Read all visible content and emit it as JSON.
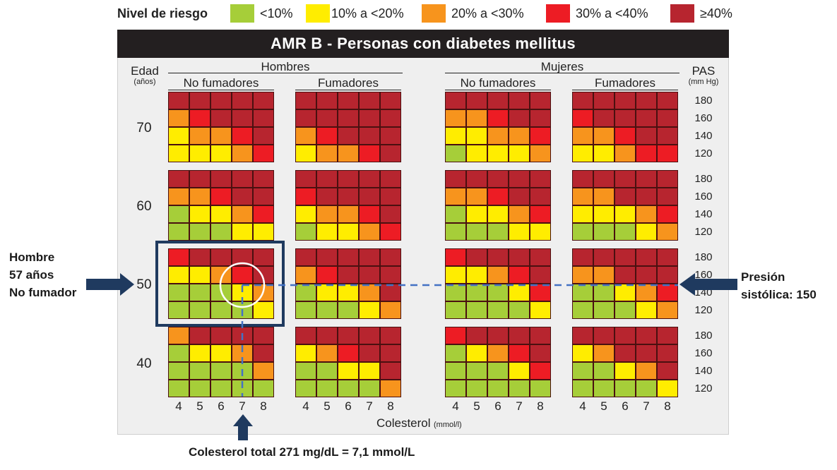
{
  "legend": {
    "title": "Nivel de riesgo",
    "items": [
      {
        "label": "<10%",
        "color": "#a6ce39"
      },
      {
        "label": "10% a <20%",
        "color": "#ffed00"
      },
      {
        "label": "20% a <30%",
        "color": "#f7941d"
      },
      {
        "label": "30% a <40%",
        "color": "#ed1c24"
      },
      {
        "label": "≥40%",
        "color": "#b7252f"
      }
    ]
  },
  "chart_data": {
    "type": "heatmap",
    "title": "AMR B - Personas con diabetes mellitus",
    "sexes": [
      "Hombres",
      "Mujeres"
    ],
    "smoking": [
      "No fumadores",
      "Fumadores"
    ],
    "age_label": "Edad",
    "age_unit": "(años)",
    "ages": [
      "70",
      "60",
      "50",
      "40"
    ],
    "sbp_label": "PAS",
    "sbp_unit": "(mm Hg)",
    "sbp_levels": [
      "180",
      "160",
      "140",
      "120"
    ],
    "cholesterol_label": "Colesterol",
    "cholesterol_unit": "(mmol/l)",
    "cholesterol_levels": [
      "4",
      "5",
      "6",
      "7",
      "8"
    ],
    "risk_scale": [
      "<10%",
      "10% a <20%",
      "20% a <30%",
      "30% a <40%",
      "≥40%"
    ],
    "grids_note": "risk level 1-5 per cell; rows SBP 180,160,140,120; cols cholesterol 4-8",
    "grids": {
      "Hombres|No fumadores|70": [
        [
          5,
          5,
          5,
          5,
          5
        ],
        [
          3,
          4,
          5,
          5,
          5
        ],
        [
          2,
          3,
          3,
          4,
          5
        ],
        [
          2,
          2,
          2,
          3,
          4
        ]
      ],
      "Hombres|Fumadores|70": [
        [
          5,
          5,
          5,
          5,
          5
        ],
        [
          5,
          5,
          5,
          5,
          5
        ],
        [
          3,
          4,
          5,
          5,
          5
        ],
        [
          2,
          3,
          3,
          4,
          5
        ]
      ],
      "Mujeres|No fumadores|70": [
        [
          5,
          5,
          5,
          5,
          5
        ],
        [
          3,
          3,
          4,
          5,
          5
        ],
        [
          2,
          2,
          3,
          3,
          4
        ],
        [
          1,
          2,
          2,
          2,
          3
        ]
      ],
      "Mujeres|Fumadores|70": [
        [
          5,
          5,
          5,
          5,
          5
        ],
        [
          4,
          5,
          5,
          5,
          5
        ],
        [
          3,
          3,
          4,
          5,
          5
        ],
        [
          2,
          2,
          3,
          4,
          4
        ]
      ],
      "Hombres|No fumadores|60": [
        [
          5,
          5,
          5,
          5,
          5
        ],
        [
          3,
          3,
          4,
          5,
          5
        ],
        [
          1,
          2,
          2,
          3,
          4
        ],
        [
          1,
          1,
          1,
          2,
          2
        ]
      ],
      "Hombres|Fumadores|60": [
        [
          5,
          5,
          5,
          5,
          5
        ],
        [
          4,
          5,
          5,
          5,
          5
        ],
        [
          2,
          3,
          3,
          4,
          5
        ],
        [
          1,
          2,
          2,
          3,
          4
        ]
      ],
      "Mujeres|No fumadores|60": [
        [
          5,
          5,
          5,
          5,
          5
        ],
        [
          3,
          3,
          4,
          5,
          5
        ],
        [
          1,
          2,
          2,
          3,
          4
        ],
        [
          1,
          1,
          1,
          2,
          2
        ]
      ],
      "Mujeres|Fumadores|60": [
        [
          5,
          5,
          5,
          5,
          5
        ],
        [
          3,
          3,
          5,
          5,
          5
        ],
        [
          2,
          2,
          2,
          3,
          4
        ],
        [
          1,
          1,
          1,
          2,
          3
        ]
      ],
      "Hombres|No fumadores|50": [
        [
          4,
          5,
          5,
          5,
          5
        ],
        [
          2,
          2,
          3,
          4,
          5
        ],
        [
          1,
          1,
          1,
          2,
          3
        ],
        [
          1,
          1,
          1,
          1,
          2
        ]
      ],
      "Hombres|Fumadores|50": [
        [
          5,
          5,
          5,
          5,
          5
        ],
        [
          3,
          4,
          5,
          5,
          5
        ],
        [
          1,
          2,
          2,
          3,
          5
        ],
        [
          1,
          1,
          1,
          2,
          3
        ]
      ],
      "Mujeres|No fumadores|50": [
        [
          4,
          5,
          5,
          5,
          5
        ],
        [
          2,
          2,
          3,
          4,
          5
        ],
        [
          1,
          1,
          1,
          2,
          4
        ],
        [
          1,
          1,
          1,
          1,
          2
        ]
      ],
      "Mujeres|Fumadores|50": [
        [
          5,
          5,
          5,
          5,
          5
        ],
        [
          3,
          3,
          5,
          5,
          5
        ],
        [
          1,
          1,
          2,
          3,
          4
        ],
        [
          1,
          1,
          1,
          2,
          3
        ]
      ],
      "Hombres|No fumadores|40": [
        [
          3,
          5,
          5,
          5,
          5
        ],
        [
          1,
          2,
          2,
          3,
          5
        ],
        [
          1,
          1,
          1,
          1,
          3
        ],
        [
          1,
          1,
          1,
          1,
          1
        ]
      ],
      "Hombres|Fumadores|40": [
        [
          5,
          5,
          5,
          5,
          5
        ],
        [
          2,
          3,
          4,
          5,
          5
        ],
        [
          1,
          1,
          2,
          2,
          5
        ],
        [
          1,
          1,
          1,
          1,
          3
        ]
      ],
      "Mujeres|No fumadores|40": [
        [
          4,
          5,
          5,
          5,
          5
        ],
        [
          1,
          2,
          3,
          4,
          5
        ],
        [
          1,
          1,
          1,
          2,
          4
        ],
        [
          1,
          1,
          1,
          1,
          1
        ]
      ],
      "Mujeres|Fumadores|40": [
        [
          5,
          5,
          5,
          5,
          5
        ],
        [
          2,
          3,
          5,
          5,
          5
        ],
        [
          1,
          1,
          2,
          3,
          5
        ],
        [
          1,
          1,
          1,
          1,
          2
        ]
      ]
    }
  },
  "annotations": {
    "patient": [
      "Hombre",
      "57 años",
      "No fumador"
    ],
    "pressure": [
      "Presión",
      "sistólica:  150"
    ],
    "cholesterol": "Colesterol total 271 mg/dL = 7,1 mmol/L"
  },
  "colors": {
    "title_bar": "#231f20",
    "highlight_box": "#1f3a5f",
    "arrow": "#1f3a5f",
    "dashed_line": "#4472c4"
  }
}
